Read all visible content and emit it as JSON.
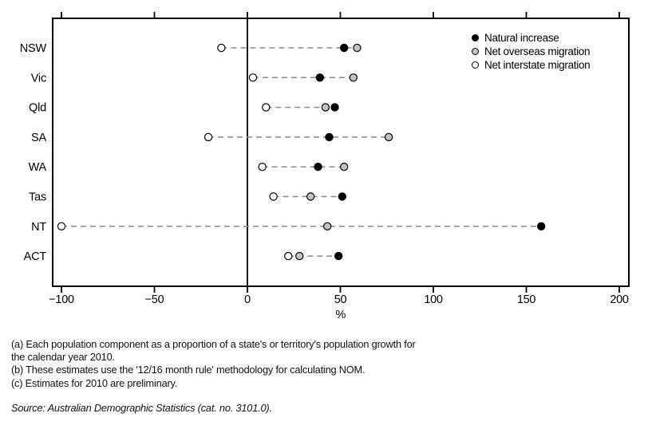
{
  "chart_data": {
    "type": "scatter",
    "subtype": "dot-plot-with-dashed-connectors",
    "categories": [
      "NSW",
      "Vic",
      "Qld",
      "SA",
      "WA",
      "Tas",
      "NT",
      "ACT"
    ],
    "series": [
      {
        "name": "Natural increase",
        "marker": "filled-black-circle",
        "color": "#000000",
        "values": [
          52,
          39,
          47,
          44,
          38,
          51,
          158,
          49
        ]
      },
      {
        "name": "Net overseas migration",
        "marker": "filled-gray-circle",
        "color": "#c2c2c2",
        "values": [
          59,
          57,
          42,
          76,
          52,
          34,
          43,
          28
        ]
      },
      {
        "name": "Net interstate migration",
        "marker": "open-white-circle",
        "color": "#ffffff",
        "values": [
          -14,
          3,
          10,
          -21,
          8,
          14,
          -100,
          22
        ]
      }
    ],
    "xlabel": "%",
    "x_ticks": [
      -100,
      -50,
      0,
      50,
      100,
      150,
      200
    ],
    "x_tick_labels": [
      "−100",
      "−50",
      "0",
      "50",
      "100",
      "150",
      "200"
    ],
    "xlim": [
      -104,
      205
    ],
    "grid": "off",
    "zero_reference_line": true,
    "legend_position": "top-right-inside",
    "connector_color": "#8a8a8a",
    "axis_color": "#000000"
  },
  "footnotes": {
    "a_line1": "(a) Each population component as a proportion of a state's or territory's population growth for",
    "a_line2": "the calendar year 2010.",
    "b": "(b) These estimates use the '12/16 month rule' methodology for calculating NOM.",
    "c": "(c) Estimates for 2010 are preliminary.",
    "source": "Source: Australian Demographic Statistics (cat. no. 3101.0)."
  }
}
